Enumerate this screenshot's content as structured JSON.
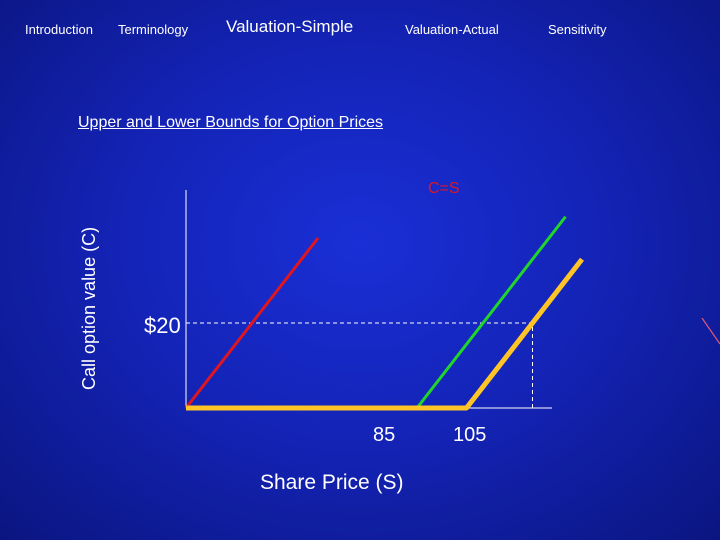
{
  "nav": {
    "items": [
      {
        "label": "Introduction"
      },
      {
        "label": "Terminology"
      },
      {
        "label": "Valuation-Simple",
        "active": true
      },
      {
        "label": "Valuation-Actual"
      },
      {
        "label": "Sensitivity"
      }
    ]
  },
  "slide": {
    "subtitle": "Upper and Lower Bounds for Option Prices"
  },
  "chart_data": {
    "type": "line",
    "title": "",
    "xlabel": "Share Price (S)",
    "ylabel": "Call option value (C)",
    "xlim": [
      0,
      125
    ],
    "ylim": [
      0,
      40
    ],
    "x_ticks": [
      {
        "value": 85,
        "label": "85"
      },
      {
        "value": 105,
        "label": "105"
      }
    ],
    "y_ticks": [
      {
        "value": 20,
        "label": "$20"
      }
    ],
    "series": [
      {
        "name": "C=S",
        "color": "#e0161e",
        "points": [
          [
            0,
            0
          ],
          [
            40,
            40
          ]
        ]
      },
      {
        "color": "#1fd629",
        "points": [
          [
            70,
            0
          ],
          [
            115,
            45
          ]
        ]
      },
      {
        "color": "#ffc526",
        "points": [
          [
            0,
            0
          ],
          [
            85,
            0
          ],
          [
            120,
            35
          ]
        ]
      }
    ],
    "reference_lines": [
      {
        "from": [
          0,
          20
        ],
        "to": [
          105,
          20
        ],
        "style": "dashed"
      },
      {
        "from": [
          105,
          0
        ],
        "to": [
          105,
          20
        ],
        "style": "dashed"
      }
    ],
    "grid": false,
    "legend": "none"
  }
}
